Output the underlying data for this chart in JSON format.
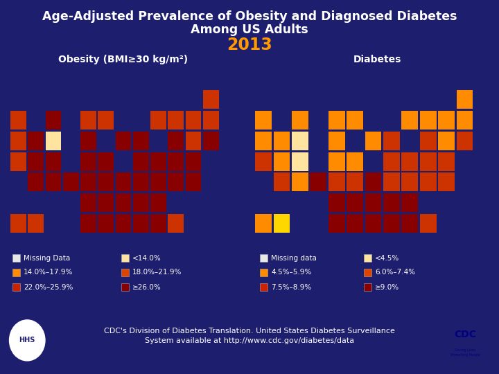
{
  "bg_color": "#1e1e6e",
  "bg_rgb": [
    30,
    30,
    110
  ],
  "title_line1": "Age-Adjusted Prevalence of Obesity and Diagnosed Diabetes",
  "title_line2": "Among US Adults",
  "title_color": "#ffffff",
  "year": "2013",
  "year_color": "#ff9900",
  "map_label_left": "Obesity (BMI≥30 kg/m²)",
  "map_label_right": "Diabetes",
  "map_label_color": "#ffffff",
  "obesity_legend": [
    {
      "label": "Missing Data",
      "color": "#e8e8e8"
    },
    {
      "label": "14.0%–17.9%",
      "color": "#ff8c00"
    },
    {
      "label": "22.0%–25.9%",
      "color": "#cc2200"
    },
    {
      "label": "<14.0%",
      "color": "#ffe4a0"
    },
    {
      "label": "18.0%–21.9%",
      "color": "#dd4400"
    },
    {
      "label": "≥26.0%",
      "color": "#880000"
    }
  ],
  "diabetes_legend": [
    {
      "label": "Missing data",
      "color": "#e8e8e8"
    },
    {
      "label": "4.5%–5.9%",
      "color": "#ff8c00"
    },
    {
      "label": "7.5%–8.9%",
      "color": "#cc2200"
    },
    {
      "label": "<4.5%",
      "color": "#ffe4a0"
    },
    {
      "label": "6.0%–7.4%",
      "color": "#dd4400"
    },
    {
      "label": "≥9.0%",
      "color": "#880000"
    }
  ],
  "footer_text": "CDC's Division of Diabetes Translation. United States Diabetes Surveillance\nSystem available at http://www.cdc.gov/diabetes/data",
  "footer_color": "#ffffff",
  "obesity_states": {
    "WA": "#cc3300",
    "OR": "#cc3300",
    "CA": "#cc3300",
    "NV": "#880000",
    "ID": "#880000",
    "MT": "#880000",
    "WY": "#ffe4a0",
    "UT": "#880000",
    "CO": "#880000",
    "AZ": "#880000",
    "NM": "#880000",
    "ND": "#cc3300",
    "SD": "#880000",
    "NE": "#880000",
    "KS": "#880000",
    "OK": "#880000",
    "TX": "#880000",
    "MN": "#cc3300",
    "IA": "#880000",
    "MO": "#880000",
    "AR": "#880000",
    "LA": "#880000",
    "WI": "#880000",
    "IL": "#880000",
    "MI": "#cc3300",
    "IN": "#880000",
    "OH": "#880000",
    "MS": "#880000",
    "AL": "#880000",
    "TN": "#880000",
    "KY": "#880000",
    "GA": "#880000",
    "FL": "#cc3300",
    "SC": "#880000",
    "NC": "#880000",
    "VA": "#880000",
    "WV": "#880000",
    "PA": "#880000",
    "NY": "#cc3300",
    "VT": "#cc3300",
    "NH": "#cc3300",
    "ME": "#cc3300",
    "MA": "#cc3300",
    "CT": "#880000",
    "RI": "#880000",
    "NJ": "#880000",
    "DE": "#880000",
    "MD": "#880000",
    "AK": "#cc3300",
    "HI": "#cc3300"
  },
  "diabetes_states": {
    "WA": "#ff8c00",
    "OR": "#ff8c00",
    "CA": "#cc3300",
    "NV": "#ff8c00",
    "ID": "#ff8c00",
    "MT": "#ff8c00",
    "WY": "#ffe4a0",
    "UT": "#ff8c00",
    "CO": "#ffe4a0",
    "AZ": "#cc3300",
    "NM": "#880000",
    "ND": "#ff8c00",
    "SD": "#ff8c00",
    "NE": "#ff8c00",
    "KS": "#cc3300",
    "OK": "#880000",
    "TX": "#880000",
    "MN": "#ff8c00",
    "IA": "#ff8c00",
    "MO": "#cc3300",
    "AR": "#880000",
    "LA": "#880000",
    "WI": "#ff8c00",
    "IL": "#cc3300",
    "MI": "#ff8c00",
    "IN": "#cc3300",
    "OH": "#cc3300",
    "MS": "#880000",
    "AL": "#880000",
    "TN": "#880000",
    "KY": "#880000",
    "GA": "#880000",
    "FL": "#cc3300",
    "SC": "#880000",
    "NC": "#880000",
    "VA": "#cc3300",
    "WV": "#cc3300",
    "PA": "#cc3300",
    "NY": "#ff8c00",
    "VT": "#ff8c00",
    "NH": "#ff8c00",
    "ME": "#ff8c00",
    "MA": "#ff8c00",
    "CT": "#cc3300",
    "RI": "#cc3300",
    "NJ": "#cc3300",
    "DE": "#cc3300",
    "MD": "#cc3300",
    "AK": "#ffd700",
    "HI": "#ff8c00"
  }
}
